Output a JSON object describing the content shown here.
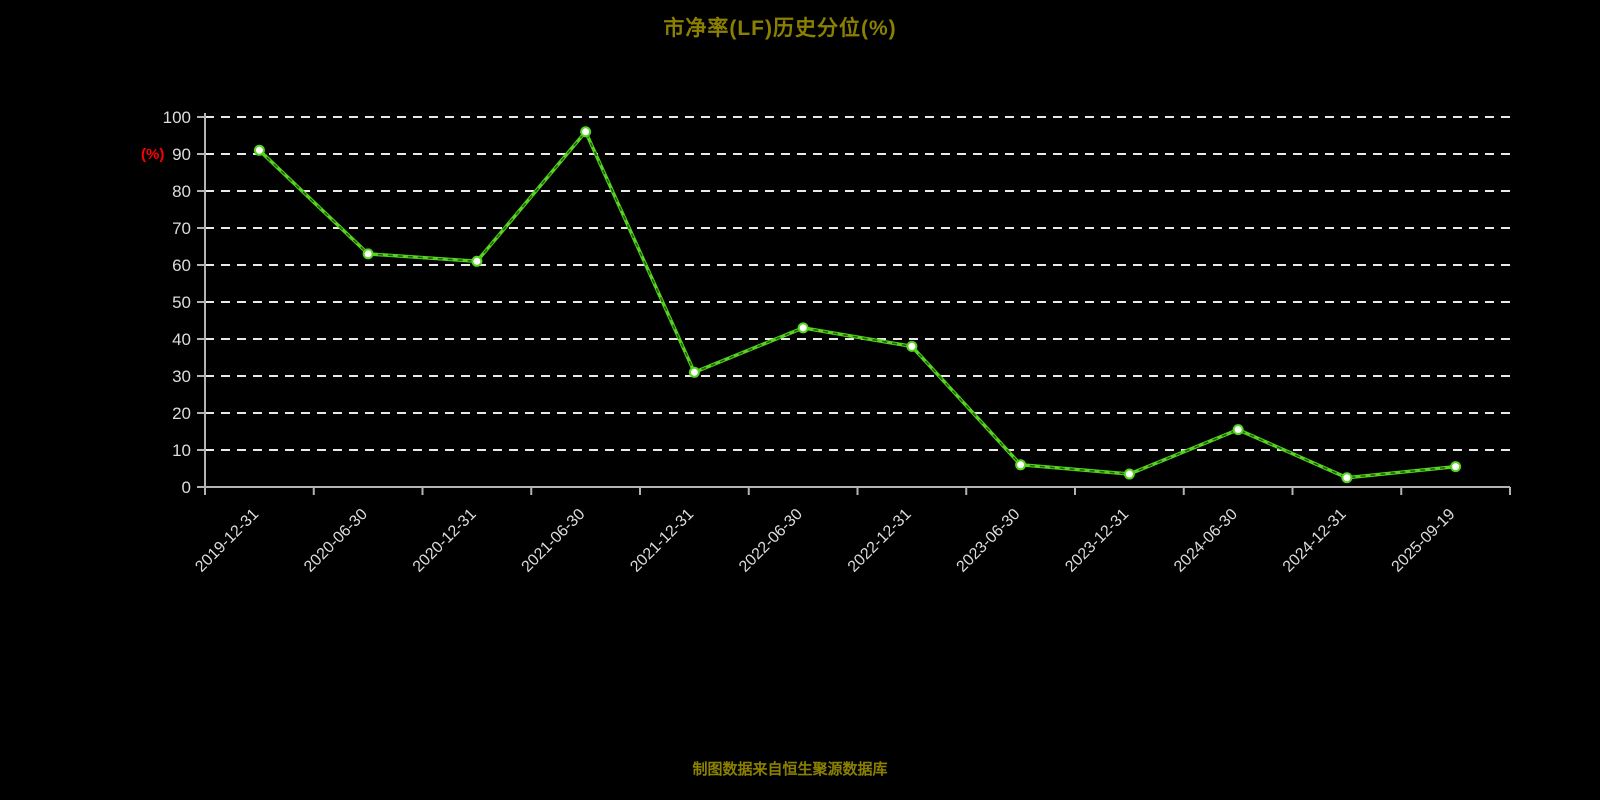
{
  "y_axis_unit": "(%)",
  "source_note": "制图数据来自恒生聚源数据库",
  "chart_data": {
    "type": "line",
    "title": "市净率(LF)历史分位(%)",
    "categories": [
      "2019-12-31",
      "2020-06-30",
      "2020-12-31",
      "2021-06-30",
      "2021-12-31",
      "2022-06-30",
      "2022-12-31",
      "2023-06-30",
      "2023-12-31",
      "2024-06-30",
      "2024-12-31",
      "2025-09-19"
    ],
    "values": [
      91,
      63,
      61,
      96,
      31,
      43,
      38,
      6,
      3.5,
      15.5,
      2.5,
      5.5
    ],
    "xlabel": "",
    "ylabel": "(%)",
    "ylim": [
      0,
      100
    ],
    "ytick_interval": 10,
    "yticks": [
      0,
      10,
      20,
      30,
      40,
      50,
      60,
      70,
      80,
      90,
      100
    ],
    "grid": "dashed-horizontal",
    "legend": "none",
    "colors": {
      "background": "#000000",
      "line": "#54d41e",
      "line_dash_overlay": "#000000",
      "marker_fill": "#ffffff",
      "marker_stroke": "#54d41e",
      "gridline": "#e9e9e9",
      "axis": "#b3b3b3",
      "tick_text": "#dcdcdc",
      "title": "#8B8000",
      "unit_label": "#ff0000",
      "source_note": "#8B8000"
    }
  }
}
